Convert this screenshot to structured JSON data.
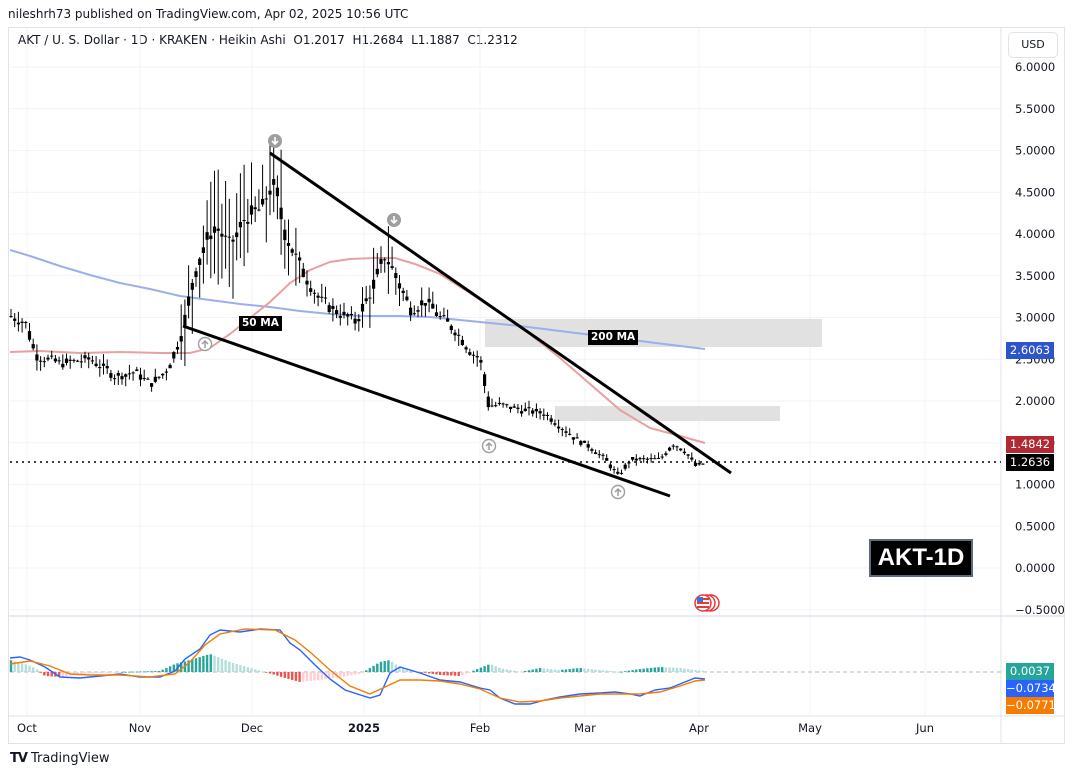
{
  "header": {
    "published": "nileshrh73 published on TradingView.com, Apr 02, 2025 10:56 UTC",
    "legend": "AKT / U. S. Dollar · 1D · KRAKEN · Heikin Ashi  O1.2017  H1.2684  L1.1887  C1.2312",
    "currency_button": "USD"
  },
  "price_axis": {
    "ticks": [
      "6.0000",
      "5.5000",
      "5.0000",
      "4.5000",
      "4.0000",
      "3.5000",
      "3.0000",
      "2.5000",
      "2.0000",
      "1.5000",
      "1.0000",
      "0.5000",
      "0.0000",
      "-0.5000"
    ],
    "tags": {
      "ma200": {
        "value": "2.6063",
        "color": "#2962ff"
      },
      "ma50": {
        "value": "1.4842",
        "color": "#b22833"
      },
      "last": {
        "value": "1.2636",
        "color": "#000000"
      }
    }
  },
  "macd_axis": {
    "tags": {
      "histogram": {
        "value": "0.0037",
        "color": "#26a69a"
      },
      "macd": {
        "value": "−0.0734",
        "color": "#2962ff"
      },
      "signal": {
        "value": "−0.0771",
        "color": "#f57c00"
      }
    }
  },
  "time_axis": {
    "ticks": [
      "Oct",
      "Nov",
      "Dec",
      "2025",
      "Feb",
      "Mar",
      "Apr",
      "May",
      "Jun"
    ]
  },
  "annotations": {
    "ma50_label": "50 MA",
    "ma200_label": "200 MA",
    "title_box": "AKT-1D"
  },
  "footer": {
    "brand": "TradingView",
    "logo": "TV"
  },
  "chart_data": {
    "type": "candlestick",
    "title": "AKT / U. S. Dollar · 1D · KRAKEN · Heikin Ashi",
    "ohlc_last": {
      "open": 1.2017,
      "high": 1.2684,
      "low": 1.1887,
      "close": 1.2312
    },
    "ylim": [
      -0.5,
      6.0
    ],
    "yticks": [
      6.0,
      5.5,
      5.0,
      4.5,
      4.0,
      3.5,
      3.0,
      2.5,
      2.0,
      1.5,
      1.0,
      0.5,
      0.0,
      -0.5
    ],
    "xticks": [
      "Oct",
      "Nov",
      "Dec",
      "2025",
      "Feb",
      "Mar",
      "Apr",
      "May",
      "Jun"
    ],
    "grid": true,
    "price_path_approx": {
      "x": [
        "Sep 25",
        "Oct 1",
        "Oct 15",
        "Nov 1",
        "Nov 8",
        "Nov 13",
        "Nov 20",
        "Dec 1",
        "Dec 7",
        "Dec 15",
        "Dec 25",
        "Jan 1",
        "Jan 3",
        "Jan 15",
        "Jan 31",
        "Feb 2",
        "Feb 15",
        "Mar 1",
        "Mar 11",
        "Mar 20",
        "Mar 25",
        "Apr 1"
      ],
      "close": [
        3.0,
        2.6,
        2.45,
        2.3,
        2.25,
        2.6,
        3.8,
        4.0,
        4.6,
        3.8,
        3.2,
        2.9,
        3.7,
        3.1,
        2.6,
        1.65,
        1.9,
        1.55,
        1.15,
        1.3,
        1.5,
        1.23
      ]
    },
    "series": [
      {
        "name": "Price (Heikin Ashi)",
        "last": 1.2636
      },
      {
        "name": "50 MA",
        "color": "#e8a0a0",
        "last": 1.4842
      },
      {
        "name": "200 MA",
        "color": "#9bb0ea",
        "last": 2.6063
      }
    ],
    "trendlines": [
      {
        "name": "upper falling wedge line",
        "from": [
          "Dec 7",
          4.95
        ],
        "to": [
          "Apr 8",
          1.12
        ]
      },
      {
        "name": "lower falling wedge line",
        "from": [
          "Nov 13",
          2.87
        ],
        "to": [
          "Mar 30",
          0.85
        ]
      }
    ],
    "zones": [
      {
        "name": "resistance zone 1",
        "range": [
          2.65,
          2.97
        ]
      },
      {
        "name": "resistance zone 2",
        "range": [
          1.75,
          1.92
        ]
      }
    ],
    "markers": [
      {
        "type": "down-arrow",
        "at": "Dec 7 high ~4.95"
      },
      {
        "type": "down-arrow",
        "at": "Jan 3 high ~4.0"
      },
      {
        "type": "up-arrow",
        "at": "Nov 13 low ~2.85"
      },
      {
        "type": "up-arrow",
        "at": "Feb 2 low ~1.6"
      },
      {
        "type": "up-arrow",
        "at": "Mar 11 low ~1.05"
      }
    ],
    "indicator": {
      "name": "MACD",
      "histogram_last": 0.0037,
      "macd_last": -0.0734,
      "signal_last": -0.0771
    }
  }
}
